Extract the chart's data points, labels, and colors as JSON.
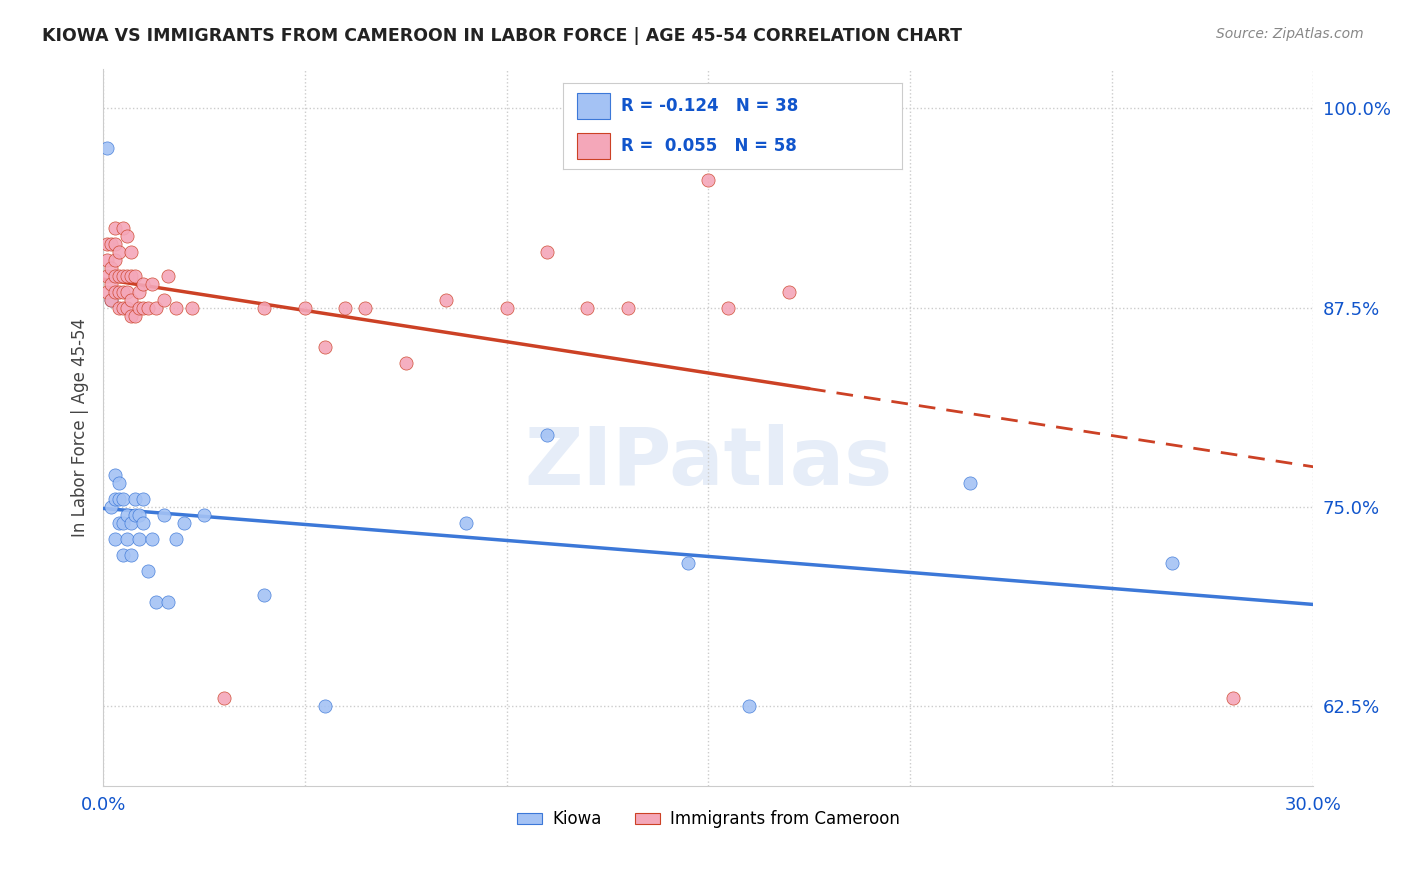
{
  "title": "KIOWA VS IMMIGRANTS FROM CAMEROON IN LABOR FORCE | AGE 45-54 CORRELATION CHART",
  "source": "Source: ZipAtlas.com",
  "ylabel": "In Labor Force | Age 45-54",
  "xlim": [
    0.0,
    0.3
  ],
  "ylim": [
    0.575,
    1.025
  ],
  "yticks": [
    0.625,
    0.75,
    0.875,
    1.0
  ],
  "ytick_labels": [
    "62.5%",
    "75.0%",
    "87.5%",
    "100.0%"
  ],
  "xticks": [
    0.0,
    0.05,
    0.1,
    0.15,
    0.2,
    0.25,
    0.3
  ],
  "xtick_labels": [
    "0.0%",
    "",
    "",
    "",
    "",
    "",
    "30.0%"
  ],
  "kiowa_color": "#a4c2f4",
  "cameroon_color": "#f4a7b9",
  "kiowa_line_color": "#3c78d8",
  "cameroon_line_color": "#cc4125",
  "legend_R_color": "#1155cc",
  "background_color": "#ffffff",
  "watermark": "ZIPatlas",
  "kiowa_R": -0.124,
  "kiowa_N": 38,
  "cameroon_R": 0.055,
  "cameroon_N": 58,
  "kiowa_x": [
    0.001,
    0.002,
    0.002,
    0.003,
    0.003,
    0.003,
    0.004,
    0.004,
    0.004,
    0.005,
    0.005,
    0.005,
    0.006,
    0.006,
    0.007,
    0.007,
    0.008,
    0.008,
    0.009,
    0.009,
    0.01,
    0.01,
    0.011,
    0.012,
    0.013,
    0.015,
    0.016,
    0.018,
    0.02,
    0.025,
    0.04,
    0.055,
    0.09,
    0.11,
    0.145,
    0.16,
    0.215,
    0.265
  ],
  "kiowa_y": [
    0.975,
    0.88,
    0.75,
    0.77,
    0.755,
    0.73,
    0.755,
    0.74,
    0.765,
    0.755,
    0.74,
    0.72,
    0.745,
    0.73,
    0.72,
    0.74,
    0.745,
    0.755,
    0.73,
    0.745,
    0.74,
    0.755,
    0.71,
    0.73,
    0.69,
    0.745,
    0.69,
    0.73,
    0.74,
    0.745,
    0.695,
    0.625,
    0.74,
    0.795,
    0.715,
    0.625,
    0.765,
    0.715
  ],
  "cameroon_x": [
    0.001,
    0.001,
    0.001,
    0.001,
    0.002,
    0.002,
    0.002,
    0.002,
    0.003,
    0.003,
    0.003,
    0.003,
    0.003,
    0.004,
    0.004,
    0.004,
    0.004,
    0.005,
    0.005,
    0.005,
    0.005,
    0.006,
    0.006,
    0.006,
    0.006,
    0.007,
    0.007,
    0.007,
    0.007,
    0.008,
    0.008,
    0.009,
    0.009,
    0.01,
    0.01,
    0.011,
    0.012,
    0.013,
    0.015,
    0.016,
    0.018,
    0.022,
    0.03,
    0.04,
    0.05,
    0.055,
    0.06,
    0.065,
    0.075,
    0.085,
    0.1,
    0.11,
    0.12,
    0.13,
    0.155,
    0.17,
    0.15,
    0.28
  ],
  "cameroon_y": [
    0.885,
    0.895,
    0.905,
    0.915,
    0.88,
    0.89,
    0.9,
    0.915,
    0.885,
    0.895,
    0.905,
    0.915,
    0.925,
    0.875,
    0.885,
    0.895,
    0.91,
    0.875,
    0.885,
    0.895,
    0.925,
    0.875,
    0.885,
    0.895,
    0.92,
    0.87,
    0.88,
    0.895,
    0.91,
    0.87,
    0.895,
    0.875,
    0.885,
    0.875,
    0.89,
    0.875,
    0.89,
    0.875,
    0.88,
    0.895,
    0.875,
    0.875,
    0.63,
    0.875,
    0.875,
    0.85,
    0.875,
    0.875,
    0.84,
    0.88,
    0.875,
    0.91,
    0.875,
    0.875,
    0.875,
    0.885,
    0.955,
    0.63
  ]
}
